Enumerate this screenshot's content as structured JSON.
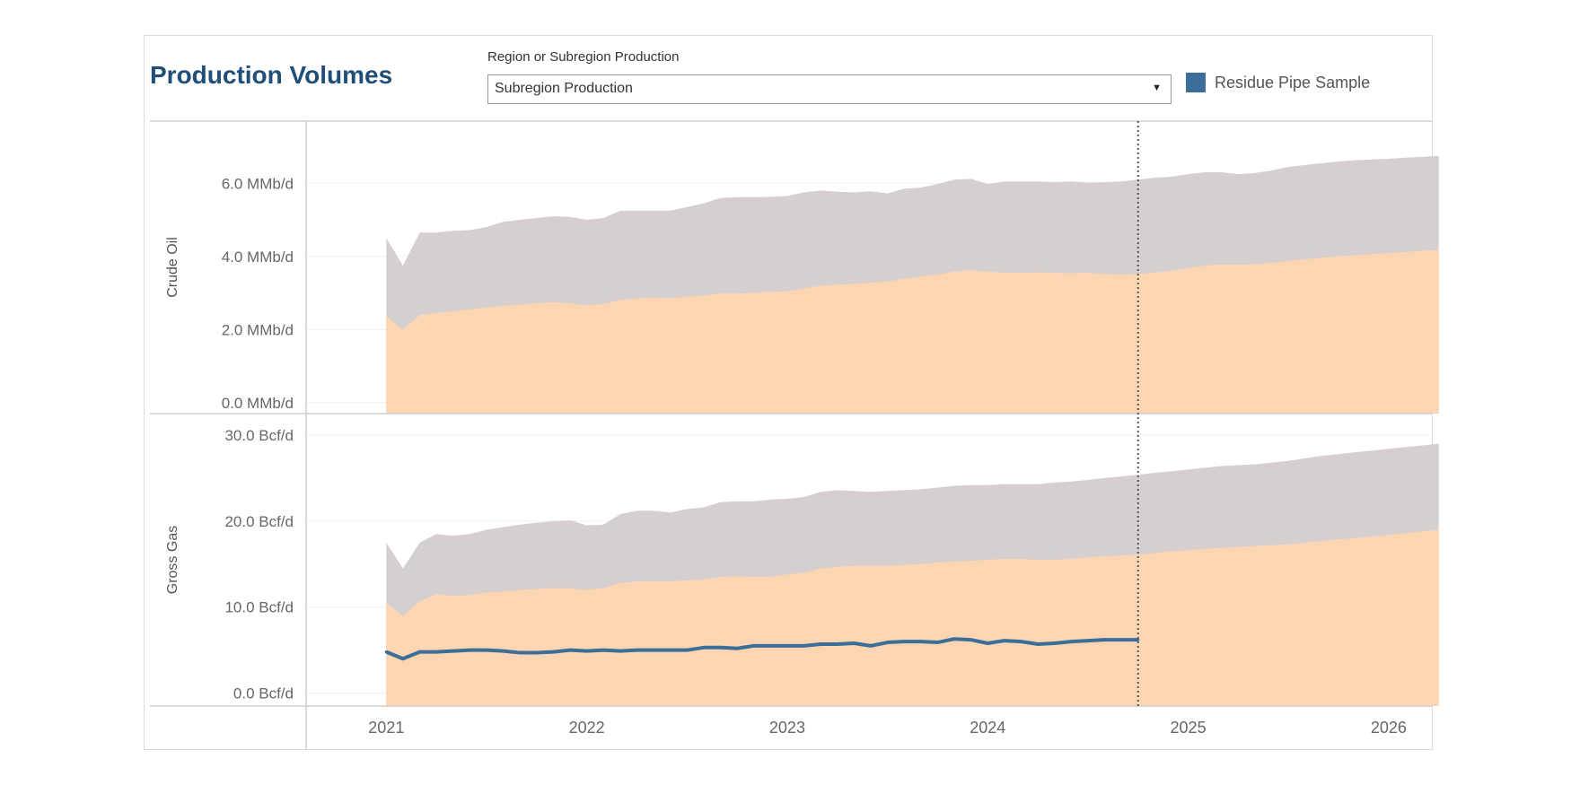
{
  "header": {
    "title": "Production Volumes",
    "filter_label": "Region or Subregion Production",
    "filter_value": "Subregion Production",
    "dropdown_icon": "caret-down-icon"
  },
  "legend": {
    "label": "Residue Pipe Sample",
    "color": "#3c6e9a"
  },
  "colors": {
    "upper_band": "#d6cfcf",
    "lower_band": "#fcd5b2",
    "line": "#3c6e9a",
    "accent_title": "#1f4e79"
  },
  "chart_data": {
    "type": "area",
    "x": [
      2021.0,
      2021.083,
      2021.167,
      2021.25,
      2021.333,
      2021.417,
      2021.5,
      2021.583,
      2021.667,
      2021.75,
      2021.833,
      2021.917,
      2022.0,
      2022.083,
      2022.167,
      2022.25,
      2022.333,
      2022.417,
      2022.5,
      2022.583,
      2022.667,
      2022.75,
      2022.833,
      2022.917,
      2023.0,
      2023.083,
      2023.167,
      2023.25,
      2023.333,
      2023.417,
      2023.5,
      2023.583,
      2023.667,
      2023.75,
      2023.833,
      2023.917,
      2024.0,
      2024.083,
      2024.167,
      2024.25,
      2024.333,
      2024.417,
      2024.5,
      2024.583,
      2024.667,
      2024.75,
      2024.833,
      2024.917,
      2025.0,
      2025.083,
      2025.167,
      2025.25,
      2025.333,
      2025.417,
      2025.5,
      2025.583,
      2025.667,
      2025.75,
      2025.833,
      2025.917,
      2026.0,
      2026.083,
      2026.167,
      2026.25
    ],
    "xticks": [
      "2021",
      "2022",
      "2023",
      "2024",
      "2025",
      "2026"
    ],
    "xtick_values": [
      2021,
      2022,
      2023,
      2024,
      2025,
      2026
    ],
    "forecast_start": 2024.75,
    "panels": [
      {
        "row_label": "Crude Oil",
        "yticks": [
          "0.0 MMb/d",
          "2.0 MMb/d",
          "4.0 MMb/d",
          "6.0 MMb/d"
        ],
        "ytick_values": [
          0,
          2,
          4,
          6
        ],
        "ylim": [
          -0.3,
          7.7
        ],
        "series": [
          {
            "values": [
              2.35,
              2.0,
              2.4,
              2.45,
              2.5,
              2.55,
              2.6,
              2.65,
              2.68,
              2.72,
              2.75,
              2.72,
              2.65,
              2.7,
              2.8,
              2.85,
              2.88,
              2.85,
              2.9,
              2.93,
              2.98,
              2.98,
              3.0,
              3.03,
              3.05,
              3.12,
              3.2,
              3.22,
              3.25,
              3.28,
              3.32,
              3.38,
              3.45,
              3.5,
              3.58,
              3.62,
              3.58,
              3.55,
              3.55,
              3.56,
              3.55,
              3.54,
              3.55,
              3.52,
              3.5,
              3.52,
              3.56,
              3.6,
              3.68,
              3.75,
              3.78,
              3.77,
              3.78,
              3.82,
              3.88,
              3.92,
              3.96,
              4.0,
              4.03,
              4.06,
              4.09,
              4.12,
              4.15,
              4.18
            ]
          },
          {
            "values": [
              4.5,
              3.75,
              4.65,
              4.65,
              4.7,
              4.72,
              4.8,
              4.95,
              5.0,
              5.05,
              5.1,
              5.08,
              5.0,
              5.05,
              5.25,
              5.25,
              5.25,
              5.25,
              5.35,
              5.45,
              5.6,
              5.62,
              5.62,
              5.63,
              5.65,
              5.75,
              5.8,
              5.77,
              5.75,
              5.78,
              5.72,
              5.85,
              5.88,
              5.98,
              6.1,
              6.12,
              5.98,
              6.05,
              6.05,
              6.05,
              6.03,
              6.05,
              6.02,
              6.03,
              6.05,
              6.1,
              6.15,
              6.18,
              6.25,
              6.3,
              6.3,
              6.25,
              6.28,
              6.35,
              6.45,
              6.5,
              6.55,
              6.6,
              6.63,
              6.65,
              6.67,
              6.7,
              6.72,
              6.75
            ]
          }
        ]
      },
      {
        "row_label": "Gross Gas",
        "yticks": [
          "0.0 Bcf/d",
          "10.0 Bcf/d",
          "20.0 Bcf/d",
          "30.0 Bcf/d"
        ],
        "ytick_values": [
          0,
          10,
          20,
          30
        ],
        "ylim": [
          -1.5,
          32.5
        ],
        "series": [
          {
            "values": [
              10.5,
              9.0,
              10.7,
              11.5,
              11.3,
              11.4,
              11.7,
              11.8,
              12.0,
              12.1,
              12.2,
              12.2,
              12.0,
              12.2,
              12.8,
              13.0,
              13.0,
              13.0,
              13.1,
              13.2,
              13.5,
              13.6,
              13.5,
              13.5,
              13.8,
              14.0,
              14.5,
              14.7,
              14.8,
              14.8,
              14.8,
              14.9,
              15.0,
              15.2,
              15.3,
              15.4,
              15.5,
              15.6,
              15.6,
              15.5,
              15.5,
              15.6,
              15.8,
              15.9,
              16.0,
              16.1,
              16.3,
              16.5,
              16.6,
              16.8,
              16.9,
              17.0,
              17.1,
              17.2,
              17.3,
              17.5,
              17.7,
              17.9,
              18.0,
              18.2,
              18.4,
              18.6,
              18.8,
              19.0
            ]
          },
          {
            "values": [
              17.5,
              14.5,
              17.5,
              18.5,
              18.3,
              18.5,
              19.0,
              19.3,
              19.6,
              19.8,
              20.0,
              20.1,
              19.5,
              19.6,
              20.8,
              21.2,
              21.2,
              21.0,
              21.4,
              21.6,
              22.2,
              22.3,
              22.3,
              22.5,
              22.6,
              22.8,
              23.4,
              23.6,
              23.5,
              23.4,
              23.5,
              23.6,
              23.7,
              23.9,
              24.1,
              24.2,
              24.2,
              24.3,
              24.3,
              24.3,
              24.5,
              24.6,
              24.8,
              25.0,
              25.2,
              25.4,
              25.6,
              25.8,
              26.0,
              26.2,
              26.4,
              26.5,
              26.6,
              26.8,
              27.0,
              27.3,
              27.6,
              27.8,
              28.0,
              28.2,
              28.4,
              28.6,
              28.8,
              29.0
            ]
          },
          {
            "name": "Residue Pipe Sample",
            "values": [
              4.8,
              4.0,
              4.8,
              4.8,
              4.9,
              5.0,
              5.0,
              4.9,
              4.7,
              4.7,
              4.8,
              5.0,
              4.9,
              5.0,
              4.9,
              5.0,
              5.0,
              5.0,
              5.0,
              5.3,
              5.3,
              5.2,
              5.5,
              5.5,
              5.5,
              5.5,
              5.7,
              5.7,
              5.8,
              5.5,
              5.9,
              6.0,
              6.0,
              5.9,
              6.3,
              6.2,
              5.8,
              6.1,
              6.0,
              5.7,
              5.8,
              6.0,
              6.1,
              6.2,
              6.2,
              6.2
            ]
          }
        ]
      }
    ]
  }
}
